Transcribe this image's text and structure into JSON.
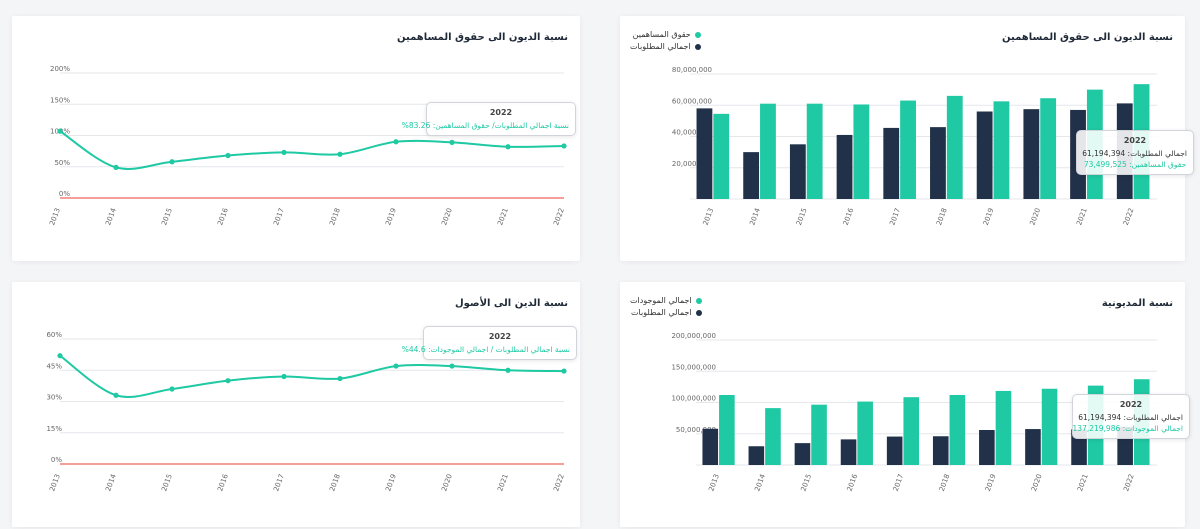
{
  "colors": {
    "green": "#1ec9a3",
    "dark": "#22314a",
    "red": "#f0665a",
    "grid": "#e5e7eb"
  },
  "cards": {
    "tl": {
      "title": "نسبة الديون الى حقوق المساهمين"
    },
    "tr": {
      "title": "نسبة الديون الى حقوق المساهمين",
      "legend": [
        "حقوق المساهمين",
        "اجمالي المطلوبات"
      ]
    },
    "bl": {
      "title": "نسبة الدين الى الأصول"
    },
    "br": {
      "title": "نسبة المديونية",
      "legend": [
        "اجمالي الموجودات",
        "اجمالي المطلوبات"
      ]
    }
  },
  "tooltips": {
    "tl": {
      "year": "2022",
      "line": "نسبة اجمالي المطلوبات/ حقوق المساهمين: 83.26%"
    },
    "tr": {
      "year": "2022",
      "line1": "اجمالي المطلوبات: 61,194,394",
      "line2": "حقوق المساهمين: 73,499,525"
    },
    "bl": {
      "year": "2022",
      "line": "نسبة اجمالي المطلوبات / اجمالي الموجودات: 44.6%"
    },
    "br": {
      "year": "2022",
      "line1": "اجمالي المطلوبات: 61,194,394",
      "line2": "اجمالي الموجودات: 137,219,986"
    }
  },
  "chart_data": [
    {
      "id": "tl",
      "type": "line",
      "title": "نسبة الديون الى حقوق المساهمين",
      "x": [
        "2013",
        "2014",
        "2015",
        "2016",
        "2017",
        "2018",
        "2019",
        "2020",
        "2021",
        "2022"
      ],
      "series": [
        {
          "values": [
            107,
            49,
            58,
            68,
            73,
            70,
            90,
            89,
            82,
            83.26
          ]
        }
      ],
      "yticks": [
        "0%",
        "50%",
        "100%",
        "150%",
        "200%"
      ],
      "ylim": [
        0,
        200
      ]
    },
    {
      "id": "tr",
      "type": "bar",
      "title": "نسبة الديون الى حقوق المساهمين",
      "categories": [
        "2013",
        "2014",
        "2015",
        "2016",
        "2017",
        "2018",
        "2019",
        "2020",
        "2021",
        "2022"
      ],
      "series": [
        {
          "name": "اجمالي المطلوبات",
          "values": [
            58000000,
            30000000,
            35000000,
            41000000,
            45500000,
            46000000,
            56000000,
            57500000,
            57000000,
            61194394
          ]
        },
        {
          "name": "حقوق المساهمين",
          "values": [
            54500000,
            61000000,
            61000000,
            60500000,
            63000000,
            66000000,
            62500000,
            64500000,
            70000000,
            73499525
          ]
        }
      ],
      "yticks": [
        "0",
        "20,000,000",
        "40,000,000",
        "60,000,000",
        "80,000,000"
      ],
      "ylim": [
        0,
        80000000
      ]
    },
    {
      "id": "bl",
      "type": "line",
      "title": "نسبة الدين الى الأصول",
      "x": [
        "2013",
        "2014",
        "2015",
        "2016",
        "2017",
        "2018",
        "2019",
        "2020",
        "2021",
        "2022"
      ],
      "series": [
        {
          "values": [
            52,
            33,
            36,
            40,
            42,
            41,
            47,
            47,
            45,
            44.6
          ]
        }
      ],
      "yticks": [
        "0%",
        "15%",
        "30%",
        "45%",
        "60%"
      ],
      "ylim": [
        0,
        60
      ]
    },
    {
      "id": "br",
      "type": "bar",
      "title": "نسبة المديونية",
      "categories": [
        "2013",
        "2014",
        "2015",
        "2016",
        "2017",
        "2018",
        "2019",
        "2020",
        "2021",
        "2022"
      ],
      "series": [
        {
          "name": "اجمالي المطلوبات",
          "values": [
            58000000,
            30000000,
            35000000,
            41000000,
            45500000,
            46000000,
            56000000,
            57500000,
            57000000,
            61194394
          ]
        },
        {
          "name": "اجمالي الموجودات",
          "values": [
            112000000,
            91000000,
            96500000,
            101500000,
            108500000,
            112000000,
            118500000,
            122000000,
            127000000,
            137219986
          ]
        }
      ],
      "yticks": [
        "0",
        "50,000,000",
        "100,000,000",
        "150,000,000",
        "200,000,000"
      ],
      "ylim": [
        0,
        200000000
      ]
    }
  ]
}
